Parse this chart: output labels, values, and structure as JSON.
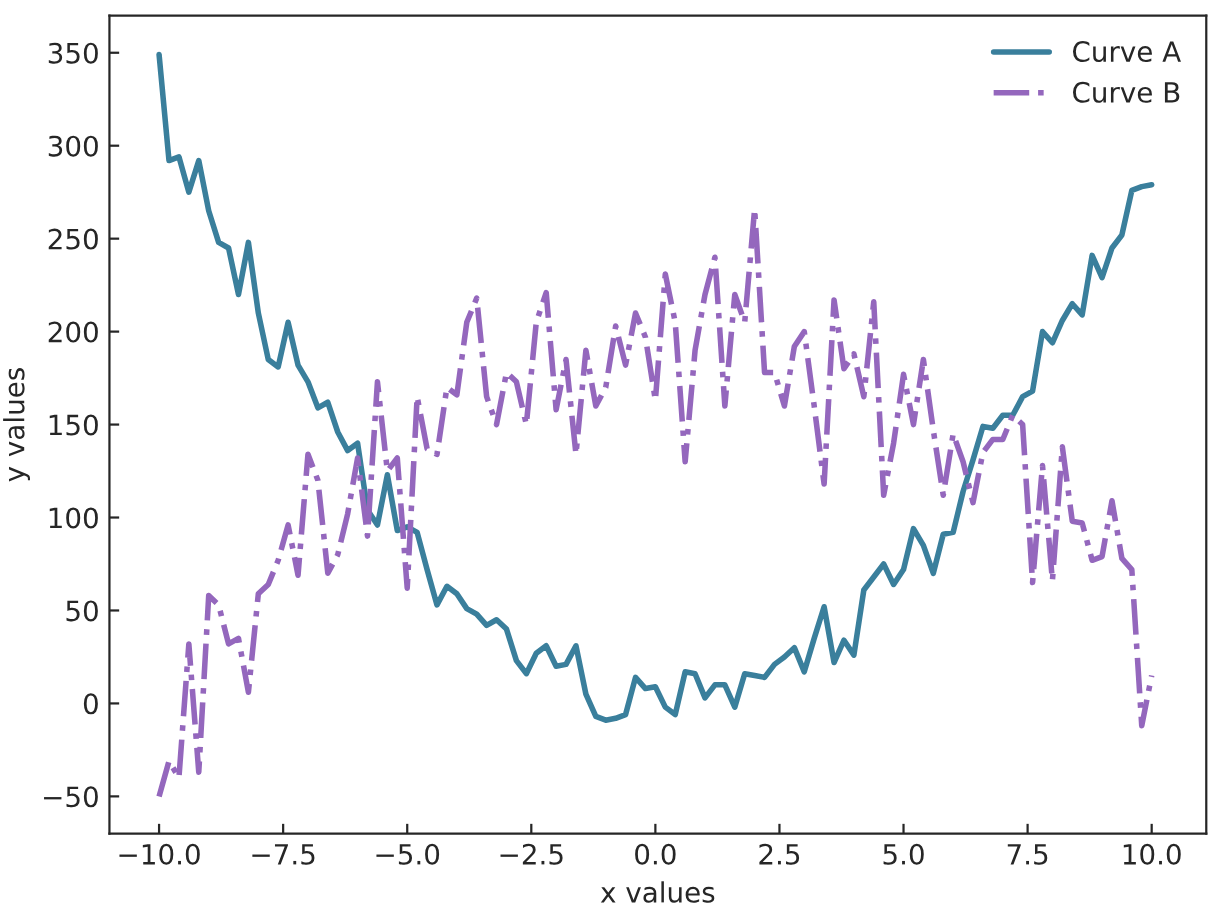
{
  "chart_data": {
    "type": "line",
    "xlabel": "x values",
    "ylabel": "y values",
    "x": [
      -10,
      -9.8,
      -9.6,
      -9.4,
      -9.2,
      -9.0,
      -8.8,
      -8.6,
      -8.4,
      -8.2,
      -8.0,
      -7.8,
      -7.6,
      -7.4,
      -7.2,
      -7.0,
      -6.8,
      -6.6,
      -6.4,
      -6.2,
      -6.0,
      -5.8,
      -5.6,
      -5.4,
      -5.2,
      -5.0,
      -4.8,
      -4.6,
      -4.4,
      -4.2,
      -4.0,
      -3.8,
      -3.6,
      -3.4,
      -3.2,
      -3.0,
      -2.8,
      -2.6,
      -2.4,
      -2.2,
      -2.0,
      -1.8,
      -1.6,
      -1.4,
      -1.2,
      -1.0,
      -0.8,
      -0.6,
      -0.4,
      -0.2,
      0,
      0.2,
      0.4,
      0.6,
      0.8,
      1.0,
      1.2,
      1.4,
      1.6,
      1.8,
      2.0,
      2.2,
      2.4,
      2.6,
      2.8,
      3.0,
      3.2,
      3.4,
      3.6,
      3.8,
      4.0,
      4.2,
      4.4,
      4.6,
      4.8,
      5.0,
      5.2,
      5.4,
      5.6,
      5.8,
      6.0,
      6.2,
      6.4,
      6.6,
      6.8,
      7.0,
      7.2,
      7.4,
      7.6,
      7.8,
      8.0,
      8.2,
      8.4,
      8.6,
      8.8,
      9.0,
      9.2,
      9.4,
      9.6,
      9.8,
      10
    ],
    "series": [
      {
        "name": "Curve A",
        "color": "#3a7f9c",
        "line_style": "solid",
        "values": [
          349,
          292,
          294,
          275,
          292,
          265,
          248,
          245,
          220,
          248,
          210,
          185,
          181,
          205,
          182,
          173,
          159,
          162,
          146,
          136,
          140,
          104,
          96,
          123,
          93,
          95,
          92,
          72,
          53,
          63,
          59,
          51,
          48,
          42,
          45,
          40,
          23,
          16,
          27,
          31,
          20,
          21,
          31,
          5,
          -7,
          -9,
          -8,
          -6,
          14,
          8,
          9,
          -2,
          -6,
          17,
          16,
          3,
          10,
          10,
          -2,
          16,
          15,
          14,
          21,
          25,
          30,
          17,
          35,
          52,
          22,
          34,
          26,
          61,
          68,
          75,
          64,
          72,
          94,
          85,
          70,
          91,
          92,
          114,
          131,
          149,
          148,
          155,
          155,
          165,
          168,
          200,
          194,
          206,
          215,
          209,
          241,
          229,
          245,
          252,
          276,
          278,
          279
        ]
      },
      {
        "name": "Curve B",
        "color": "#9467bd",
        "line_style": "dashdot",
        "values": [
          -50,
          -31,
          -40,
          32,
          -37,
          58,
          53,
          32,
          35,
          6,
          59,
          64,
          77,
          96,
          69,
          134,
          120,
          70,
          80,
          102,
          132,
          90,
          173,
          125,
          132,
          62,
          165,
          137,
          134,
          170,
          166,
          205,
          218,
          165,
          150,
          178,
          173,
          150,
          205,
          221,
          158,
          185,
          134,
          190,
          160,
          170,
          203,
          182,
          210,
          197,
          163,
          231,
          205,
          130,
          190,
          220,
          240,
          160,
          220,
          205,
          266,
          178,
          178,
          160,
          192,
          200,
          160,
          118,
          217,
          180,
          188,
          165,
          216,
          112,
          140,
          177,
          150,
          185,
          147,
          112,
          145,
          130,
          108,
          135,
          142,
          142,
          155,
          150,
          65,
          128,
          66,
          138,
          98,
          97,
          77,
          79,
          109,
          78,
          72,
          -12,
          15
        ]
      }
    ],
    "xlim": [
      -11,
      11.1
    ],
    "ylim": [
      -70,
      370
    ],
    "xticks": [
      {
        "value": -10,
        "label": "−10.0"
      },
      {
        "value": -7.5,
        "label": "−7.5"
      },
      {
        "value": -5,
        "label": "−5.0"
      },
      {
        "value": -2.5,
        "label": "−2.5"
      },
      {
        "value": 0,
        "label": "0.0"
      },
      2.5,
      {
        "value": 5,
        "label": "5.0"
      },
      7.5,
      {
        "value": 10,
        "label": "10.0"
      }
    ],
    "yticks": [
      {
        "value": -50,
        "label": "−50"
      },
      0,
      50,
      100,
      150,
      200,
      250,
      300,
      350
    ],
    "grid": false,
    "legend": "top right"
  }
}
